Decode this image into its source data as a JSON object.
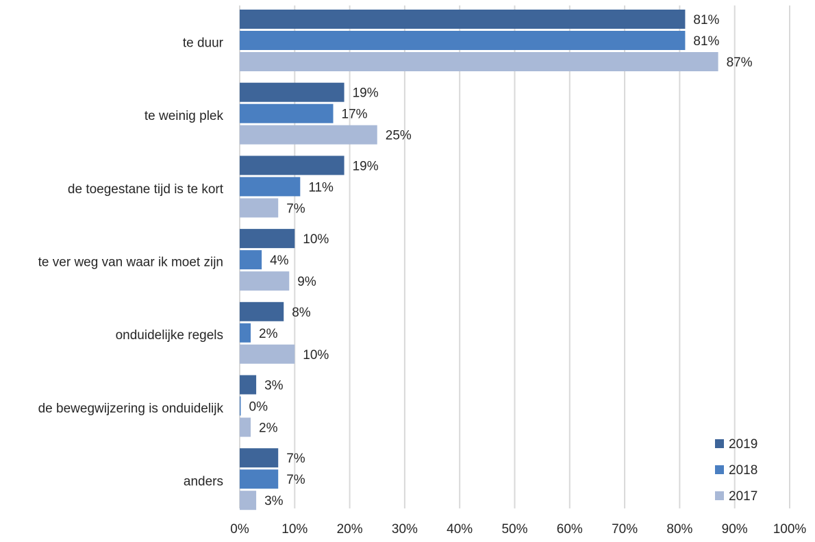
{
  "chart_data": {
    "type": "bar",
    "orientation": "horizontal",
    "categories": [
      "te duur",
      "te weinig plek",
      "de toegestane tijd is te kort",
      "te ver weg van waar ik moet zijn",
      "onduidelijke regels",
      "de bewegwijzering is onduidelijk",
      "anders"
    ],
    "series": [
      {
        "name": "2019",
        "color": "#3e6599",
        "values": [
          81,
          19,
          19,
          10,
          8,
          3,
          7
        ],
        "labels": [
          "81%",
          "19%",
          "19%",
          "10%",
          "8%",
          "3%",
          "7%"
        ]
      },
      {
        "name": "2018",
        "color": "#4a7fc1",
        "values": [
          81,
          17,
          11,
          4,
          2,
          0,
          7
        ],
        "labels": [
          "81%",
          "17%",
          "11%",
          "4%",
          "2%",
          "0%",
          "7%"
        ]
      },
      {
        "name": "2017",
        "color": "#a9b9d7",
        "values": [
          87,
          25,
          7,
          9,
          10,
          2,
          3
        ],
        "labels": [
          "87%",
          "25%",
          "7%",
          "9%",
          "10%",
          "2%",
          "3%"
        ]
      }
    ],
    "xlim": [
      0,
      100
    ],
    "x_ticks": [
      "0%",
      "10%",
      "20%",
      "30%",
      "40%",
      "50%",
      "60%",
      "70%",
      "80%",
      "90%",
      "100%"
    ],
    "grid": "vertical",
    "legend_position": "bottom-right",
    "title": "",
    "xlabel": "",
    "ylabel": ""
  }
}
